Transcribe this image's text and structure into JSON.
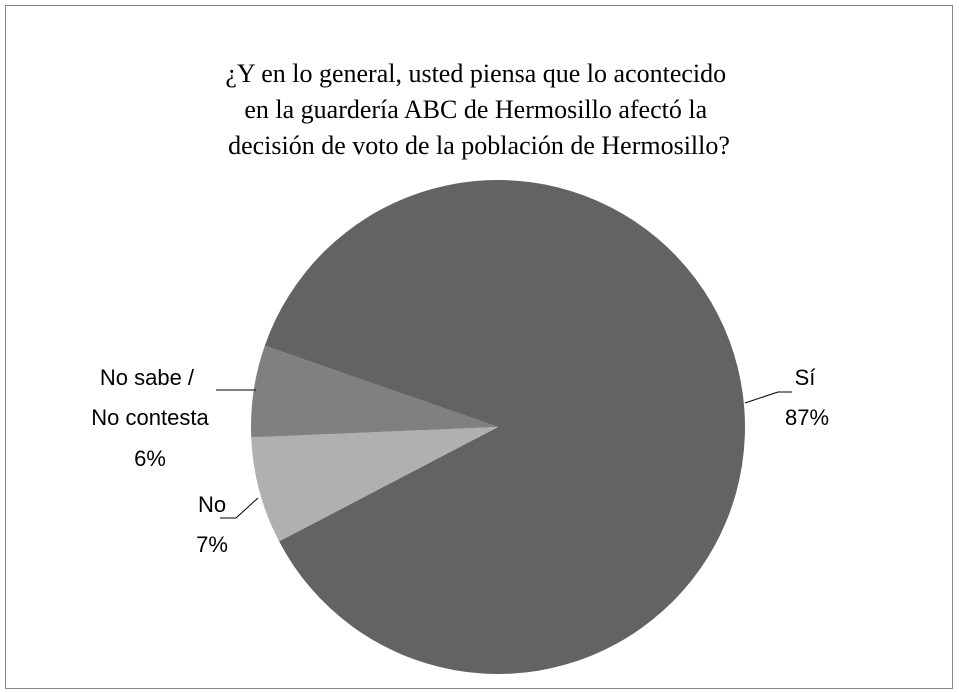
{
  "chart_data": {
    "type": "pie",
    "title": "¿Y en lo general, usted piensa que lo acontecido en la guardería ABC de Hermosillo afectó la decisión de voto de la población de Hermosillo?",
    "categories": [
      "Sí",
      "No",
      "No sabe / No contesta"
    ],
    "values": [
      87,
      7,
      6
    ],
    "value_labels": [
      "87%",
      "7%",
      "6%"
    ],
    "colors": [
      "#636363",
      "#b0b0b0",
      "#808080"
    ]
  }
}
